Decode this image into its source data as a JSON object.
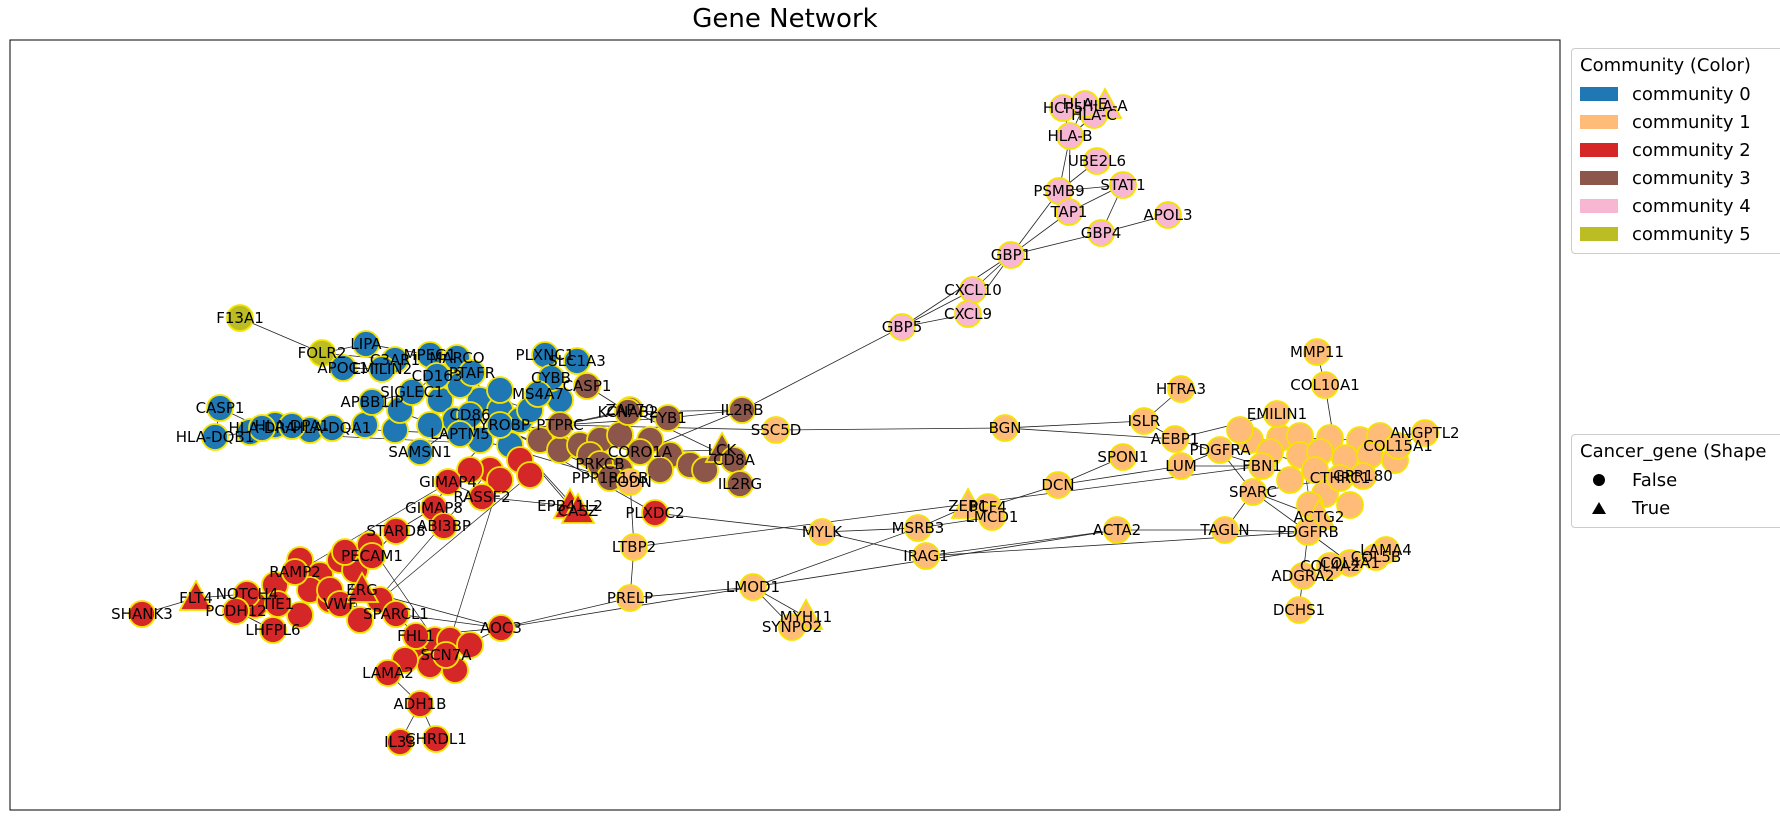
{
  "title": "Gene Network",
  "colors": {
    "community_0": "#1f77b4",
    "community_1": "#ffbb78",
    "community_2": "#d62728",
    "community_3": "#8c564b",
    "community_4": "#f7b6d2",
    "community_5": "#bcbd22",
    "node_outline": "#f5e400",
    "edge": "#222222"
  },
  "legend_community": {
    "title": "Community (Color)",
    "items": [
      {
        "label": "community 0",
        "community": 0
      },
      {
        "label": "community 1",
        "community": 1
      },
      {
        "label": "community 2",
        "community": 2
      },
      {
        "label": "community 3",
        "community": 3
      },
      {
        "label": "community 4",
        "community": 4
      },
      {
        "label": "community 5",
        "community": 5
      }
    ]
  },
  "legend_shape": {
    "title": "Cancer_gene (Shape",
    "items": [
      {
        "label": "False",
        "shape": "circle"
      },
      {
        "label": "True",
        "shape": "triangle"
      }
    ]
  },
  "nodes": [
    {
      "id": "HCP5",
      "community": 4,
      "cancer": false
    },
    {
      "id": "HLA-A",
      "community": 4,
      "cancer": true
    },
    {
      "id": "HLA-C",
      "community": 4,
      "cancer": false
    },
    {
      "id": "HLA-E",
      "community": 4,
      "cancer": false
    },
    {
      "id": "HLA-B",
      "community": 4,
      "cancer": false
    },
    {
      "id": "UBE2L6",
      "community": 4,
      "cancer": false
    },
    {
      "id": "PSMB9",
      "community": 4,
      "cancer": false
    },
    {
      "id": "STAT1",
      "community": 4,
      "cancer": false
    },
    {
      "id": "TAP1",
      "community": 4,
      "cancer": false
    },
    {
      "id": "APOL3",
      "community": 4,
      "cancer": false
    },
    {
      "id": "GBP4",
      "community": 4,
      "cancer": false
    },
    {
      "id": "GBP1",
      "community": 4,
      "cancer": false
    },
    {
      "id": "CXCL10",
      "community": 4,
      "cancer": false
    },
    {
      "id": "CXCL9",
      "community": 4,
      "cancer": false
    },
    {
      "id": "GBP5",
      "community": 4,
      "cancer": false
    },
    {
      "id": "F13A1",
      "community": 5,
      "cancer": false
    },
    {
      "id": "FOLR2",
      "community": 5,
      "cancer": false
    },
    {
      "id": "LIPA",
      "community": 0,
      "cancer": false
    },
    {
      "id": "APOC1",
      "community": 0,
      "cancer": false
    },
    {
      "id": "C3AR1",
      "community": 0,
      "cancer": false
    },
    {
      "id": "EMILIN2",
      "community": 0,
      "cancer": false
    },
    {
      "id": "MPEG1",
      "community": 0,
      "cancer": false
    },
    {
      "id": "MARCO",
      "community": 0,
      "cancer": false
    },
    {
      "id": "CD163",
      "community": 0,
      "cancer": false
    },
    {
      "id": "PTAFR",
      "community": 0,
      "cancer": false
    },
    {
      "id": "PLXNC1",
      "community": 0,
      "cancer": false
    },
    {
      "id": "SLC1A3",
      "community": 0,
      "cancer": false
    },
    {
      "id": "CYBB",
      "community": 0,
      "cancer": false
    },
    {
      "id": "MS4A7",
      "community": 0,
      "cancer": false
    },
    {
      "id": "CASP1",
      "community": 0,
      "cancer": false
    },
    {
      "id": "HLA-DQB1",
      "community": 0,
      "cancer": false
    },
    {
      "id": "HLA-DRA",
      "community": 0,
      "cancer": false
    },
    {
      "id": "HLA-DPA1",
      "community": 0,
      "cancer": false
    },
    {
      "id": "HLA-DQA1",
      "community": 0,
      "cancer": false
    },
    {
      "id": "APBB1IP",
      "community": 0,
      "cancer": false
    },
    {
      "id": "SIGLEC1",
      "community": 0,
      "cancer": false
    },
    {
      "id": "SAMSN1",
      "community": 0,
      "cancer": false
    },
    {
      "id": "CD86",
      "community": 0,
      "cancer": false
    },
    {
      "id": "LAPTM5",
      "community": 0,
      "cancer": false
    },
    {
      "id": "TYROBP",
      "community": 0,
      "cancer": false
    },
    {
      "id": "IL2RB",
      "community": 3,
      "cancer": false
    },
    {
      "id": "ZAP70",
      "community": 3,
      "cancer": false
    },
    {
      "id": "CASP1B",
      "community": 3,
      "cancer": false
    },
    {
      "id": "LCK",
      "community": 3,
      "cancer": true
    },
    {
      "id": "CD8A",
      "community": 3,
      "cancer": false
    },
    {
      "id": "IL2RG",
      "community": 3,
      "cancer": false
    },
    {
      "id": "PRKCB",
      "community": 3,
      "cancer": false
    },
    {
      "id": "CORO1A",
      "community": 3,
      "cancer": false
    },
    {
      "id": "PTPRC",
      "community": 3,
      "cancer": false
    },
    {
      "id": "KCNAB2",
      "community": 3,
      "cancer": false
    },
    {
      "id": "FYB1",
      "community": 3,
      "cancer": false
    },
    {
      "id": "PPP1R16B",
      "community": 3,
      "cancer": false
    },
    {
      "id": "GIMAP4",
      "community": 2,
      "cancer": false
    },
    {
      "id": "GIMAP8",
      "community": 2,
      "cancer": false
    },
    {
      "id": "RASSF2",
      "community": 2,
      "cancer": false
    },
    {
      "id": "ABI3BP",
      "community": 2,
      "cancer": false
    },
    {
      "id": "STARD8",
      "community": 2,
      "cancer": false
    },
    {
      "id": "EPB41L2",
      "community": 2,
      "cancer": true
    },
    {
      "id": "CASZ",
      "community": 2,
      "cancer": true
    },
    {
      "id": "PLXDC2",
      "community": 2,
      "cancer": false
    },
    {
      "id": "PECAM1",
      "community": 2,
      "cancer": false
    },
    {
      "id": "SHANK3",
      "community": 2,
      "cancer": false
    },
    {
      "id": "FLT4",
      "community": 2,
      "cancer": true
    },
    {
      "id": "NOTCH4",
      "community": 2,
      "cancer": false
    },
    {
      "id": "PCDH12",
      "community": 2,
      "cancer": false
    },
    {
      "id": "TIE1",
      "community": 2,
      "cancer": false
    },
    {
      "id": "LHFPL6",
      "community": 2,
      "cancer": false
    },
    {
      "id": "RAMP2",
      "community": 2,
      "cancer": false
    },
    {
      "id": "VWF",
      "community": 2,
      "cancer": false
    },
    {
      "id": "ERG",
      "community": 2,
      "cancer": true
    },
    {
      "id": "SPARCL1",
      "community": 2,
      "cancer": false
    },
    {
      "id": "FHL1",
      "community": 2,
      "cancer": false
    },
    {
      "id": "AOC3",
      "community": 2,
      "cancer": false
    },
    {
      "id": "LAMA2",
      "community": 2,
      "cancer": false
    },
    {
      "id": "SCN7A",
      "community": 2,
      "cancer": false
    },
    {
      "id": "ADH1B",
      "community": 2,
      "cancer": false
    },
    {
      "id": "IL33",
      "community": 2,
      "cancer": false
    },
    {
      "id": "CHRDL1",
      "community": 2,
      "cancer": false
    },
    {
      "id": "SSC5D",
      "community": 1,
      "cancer": false
    },
    {
      "id": "PODN",
      "community": 1,
      "cancer": false
    },
    {
      "id": "LTBP2",
      "community": 1,
      "cancer": false
    },
    {
      "id": "PRELP",
      "community": 1,
      "cancer": false
    },
    {
      "id": "LMOD1",
      "community": 1,
      "cancer": false
    },
    {
      "id": "MYH11",
      "community": 1,
      "cancer": true
    },
    {
      "id": "SYNPO2",
      "community": 1,
      "cancer": false
    },
    {
      "id": "MYLK",
      "community": 1,
      "cancer": false
    },
    {
      "id": "MSRB3",
      "community": 1,
      "cancer": false
    },
    {
      "id": "ZEB1",
      "community": 1,
      "cancer": true
    },
    {
      "id": "PCF4",
      "community": 1,
      "cancer": false
    },
    {
      "id": "LMCD1",
      "community": 1,
      "cancer": false
    },
    {
      "id": "IRAG1",
      "community": 1,
      "cancer": false
    },
    {
      "id": "BGN",
      "community": 1,
      "cancer": false
    },
    {
      "id": "ISLR",
      "community": 1,
      "cancer": false
    },
    {
      "id": "HTRA3",
      "community": 1,
      "cancer": false
    },
    {
      "id": "DCN",
      "community": 1,
      "cancer": false
    },
    {
      "id": "SPON1",
      "community": 1,
      "cancer": false
    },
    {
      "id": "AEBP1",
      "community": 1,
      "cancer": false
    },
    {
      "id": "PDGFRA",
      "community": 1,
      "cancer": false
    },
    {
      "id": "LUM",
      "community": 1,
      "cancer": false
    },
    {
      "id": "FBN1",
      "community": 1,
      "cancer": false
    },
    {
      "id": "SPARC",
      "community": 1,
      "cancer": false
    },
    {
      "id": "ACTA2",
      "community": 1,
      "cancer": false
    },
    {
      "id": "TAGLN",
      "community": 1,
      "cancer": false
    },
    {
      "id": "MMP11",
      "community": 1,
      "cancer": false
    },
    {
      "id": "COL10A1",
      "community": 1,
      "cancer": false
    },
    {
      "id": "EMILIN1",
      "community": 1,
      "cancer": false
    },
    {
      "id": "ANGPTL2",
      "community": 1,
      "cancer": false
    },
    {
      "id": "COL15A1",
      "community": 1,
      "cancer": false
    },
    {
      "id": "CTHRC1",
      "community": 1,
      "cancer": false
    },
    {
      "id": "GPR180",
      "community": 1,
      "cancer": false
    },
    {
      "id": "ACTG2",
      "community": 1,
      "cancer": true
    },
    {
      "id": "PDGFRB",
      "community": 1,
      "cancer": false
    },
    {
      "id": "LAMA4",
      "community": 1,
      "cancer": false
    },
    {
      "id": "COL4A1",
      "community": 1,
      "cancer": false
    },
    {
      "id": "COL4A2",
      "community": 1,
      "cancer": false
    },
    {
      "id": "COL5B",
      "community": 1,
      "cancer": false
    },
    {
      "id": "ADGRA2",
      "community": 1,
      "cancer": false
    },
    {
      "id": "DCHS1",
      "community": 1,
      "cancer": false
    }
  ],
  "edges": [
    [
      "HLA-A",
      "HLA-B"
    ],
    [
      "HLA-C",
      "HLA-B"
    ],
    [
      "HCP5",
      "HLA-B"
    ],
    [
      "HLA-E",
      "HLA-B"
    ],
    [
      "HLA-B",
      "PSMB9"
    ],
    [
      "HLA-B",
      "TAP1"
    ],
    [
      "PSMB9",
      "UBE2L6"
    ],
    [
      "PSMB9",
      "STAT1"
    ],
    [
      "PSMB9",
      "TAP1"
    ],
    [
      "TAP1",
      "STAT1"
    ],
    [
      "PSMB9",
      "GBP1"
    ],
    [
      "TAP1",
      "GBP1"
    ],
    [
      "GBP1",
      "GBP4"
    ],
    [
      "GBP4",
      "APOL3"
    ],
    [
      "GBP1",
      "CXCL10"
    ],
    [
      "GBP1",
      "CXCL9"
    ],
    [
      "GBP1",
      "GBP5"
    ],
    [
      "CXCL10",
      "GBP5"
    ],
    [
      "CXCL9",
      "GBP5"
    ],
    [
      "GBP5",
      "IL2RB"
    ],
    [
      "STAT1",
      "GBP4"
    ],
    [
      "F13A1",
      "FOLR2"
    ],
    [
      "FOLR2",
      "LIPA"
    ],
    [
      "FOLR2",
      "C3AR1"
    ],
    [
      "LIPA",
      "MPEG1"
    ],
    [
      "CASP1",
      "HLA-DQB1"
    ],
    [
      "CASP1",
      "HLA-DRA"
    ],
    [
      "HLA-DQB1",
      "HLA-DPA1"
    ],
    [
      "HLA-DRA",
      "HLA-DQA1"
    ],
    [
      "SIGLEC1",
      "CD163"
    ],
    [
      "APBB1IP",
      "LAPTM5"
    ],
    [
      "SAMSN1",
      "CD86"
    ],
    [
      "CD86",
      "TYROBP"
    ],
    [
      "TYROBP",
      "PTAFR"
    ],
    [
      "MS4A7",
      "CYBB"
    ],
    [
      "PLXNC1",
      "SLC1A3"
    ],
    [
      "LAPTM5",
      "PTPRC"
    ],
    [
      "CYBB",
      "TYROBP"
    ],
    [
      "MARCO",
      "CD163"
    ],
    [
      "EMILIN2",
      "APOC1"
    ],
    [
      "APBB1IP",
      "SIGLEC1"
    ],
    [
      "HLA-DQA1",
      "LAPTM5"
    ],
    [
      "PTPRC",
      "KCNAB2"
    ],
    [
      "PTPRC",
      "FYB1"
    ],
    [
      "FYB1",
      "IL2RB"
    ],
    [
      "KCNAB2",
      "IL2RB"
    ],
    [
      "CORO1A",
      "LCK"
    ],
    [
      "LCK",
      "CD8A"
    ],
    [
      "CD8A",
      "IL2RG"
    ],
    [
      "ZAP70",
      "CD8A"
    ],
    [
      "PRKCB",
      "CORO1A"
    ],
    [
      "PPP1R16B",
      "PRKCB"
    ],
    [
      "CASP1B",
      "KCNAB2"
    ],
    [
      "TYROBP",
      "CORO1A"
    ],
    [
      "LAPTM5",
      "PPP1R16B"
    ],
    [
      "PTPRC",
      "ZAP70"
    ],
    [
      "IL2RB",
      "CORO1A"
    ],
    [
      "TYROBP",
      "GIMAP4"
    ],
    [
      "GIMAP4",
      "RASSF2"
    ],
    [
      "GIMAP4",
      "GIMAP8"
    ],
    [
      "GIMAP8",
      "ABI3BP"
    ],
    [
      "GIMAP8",
      "STARD8"
    ],
    [
      "RASSF2",
      "EPB41L2"
    ],
    [
      "TYROBP",
      "EPB41L2"
    ],
    [
      "TYROBP",
      "CASZ"
    ],
    [
      "TYROBP",
      "PLXDC2"
    ],
    [
      "CD86",
      "PODN"
    ],
    [
      "PTPRC",
      "SSC5D"
    ],
    [
      "STARD8",
      "PECAM1"
    ],
    [
      "PECAM1",
      "ERG"
    ],
    [
      "ERG",
      "VWF"
    ],
    [
      "ERG",
      "SPARCL1"
    ],
    [
      "RAMP2",
      "TIE1"
    ],
    [
      "TIE1",
      "NOTCH4"
    ],
    [
      "NOTCH4",
      "PCDH12"
    ],
    [
      "PCDH12",
      "LHFPL6"
    ],
    [
      "FLT4",
      "NOTCH4"
    ],
    [
      "SHANK3",
      "FLT4"
    ],
    [
      "VWF",
      "SPARCL1"
    ],
    [
      "SPARCL1",
      "FHL1"
    ],
    [
      "SPARCL1",
      "AOC3"
    ],
    [
      "FHL1",
      "AOC3"
    ],
    [
      "AOC3",
      "SCN7A"
    ],
    [
      "SCN7A",
      "LAMA2"
    ],
    [
      "LAMA2",
      "ADH1B"
    ],
    [
      "ADH1B",
      "IL33"
    ],
    [
      "ADH1B",
      "CHRDL1"
    ],
    [
      "PECAM1",
      "VWF"
    ],
    [
      "ERG",
      "AOC3"
    ],
    [
      "FHL1",
      "SCN7A"
    ],
    [
      "LAMA2",
      "FHL1"
    ],
    [
      "PODN",
      "LTBP2"
    ],
    [
      "LTBP2",
      "PRELP"
    ],
    [
      "PRELP",
      "LMOD1"
    ],
    [
      "PRELP",
      "AOC3"
    ],
    [
      "LMOD1",
      "AOC3"
    ],
    [
      "LMOD1",
      "MYH11"
    ],
    [
      "LMOD1",
      "SYNPO2"
    ],
    [
      "LMOD1",
      "MSRB3"
    ],
    [
      "LMOD1",
      "ACTA2"
    ],
    [
      "PLXDC2",
      "MYLK"
    ],
    [
      "MYLK",
      "MSRB3"
    ],
    [
      "MYLK",
      "IRAG1"
    ],
    [
      "MSRB3",
      "ZEB1"
    ],
    [
      "ZEB1",
      "PCF4"
    ],
    [
      "PCF4",
      "LMCD1"
    ],
    [
      "PCF4",
      "DCN"
    ],
    [
      "MSRB3",
      "LMCD1"
    ],
    [
      "IRAG1",
      "ACTA2"
    ],
    [
      "ACTA2",
      "TAGLN"
    ],
    [
      "TAGLN",
      "SPARC"
    ],
    [
      "SSC5D",
      "BGN"
    ],
    [
      "BGN",
      "ISLR"
    ],
    [
      "BGN",
      "AEBP1"
    ],
    [
      "ISLR",
      "HTRA3"
    ],
    [
      "ISLR",
      "AEBP1"
    ],
    [
      "DCN",
      "LUM"
    ],
    [
      "DCN",
      "SPON1"
    ],
    [
      "LUM",
      "PDGFRA"
    ],
    [
      "LUM",
      "FBN1"
    ],
    [
      "AEBP1",
      "FBN1"
    ],
    [
      "FBN1",
      "SPARC"
    ],
    [
      "SPARC",
      "PDGFRB"
    ],
    [
      "SPARC",
      "ACTG2"
    ],
    [
      "PDGFRB",
      "ADGRA2"
    ],
    [
      "ADGRA2",
      "DCHS1"
    ],
    [
      "PDGFRB",
      "COL4A1"
    ],
    [
      "COL4A1",
      "COL4A2"
    ],
    [
      "COL4A2",
      "LAMA4"
    ],
    [
      "COL4A2",
      "COL5B"
    ],
    [
      "PDGFRB",
      "ACTG2"
    ],
    [
      "MMP11",
      "COL10A1"
    ],
    [
      "COL10A1",
      "CTHRC1"
    ],
    [
      "EMILIN1",
      "AEBP1"
    ],
    [
      "EMILIN1",
      "FBN1"
    ],
    [
      "COL15A1",
      "ANGPTL2"
    ],
    [
      "COL15A1",
      "GPR180"
    ],
    [
      "CTHRC1",
      "SPARC"
    ],
    [
      "PDGFRA",
      "SPARC"
    ],
    [
      "ANGPTL2",
      "PDGFRA"
    ],
    [
      "TAGLN",
      "PDGFRB"
    ],
    [
      "IRAG1",
      "PDGFRB"
    ],
    [
      "LTBP2",
      "FBN1"
    ]
  ]
}
